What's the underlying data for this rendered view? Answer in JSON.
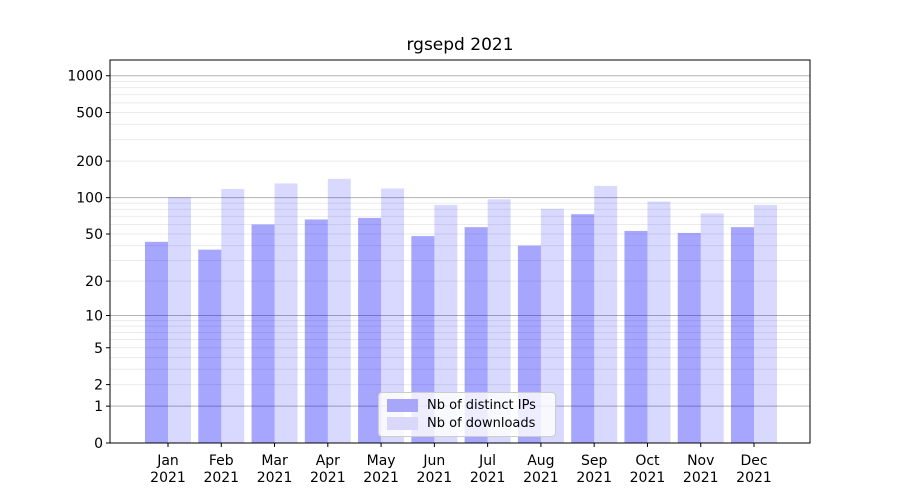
{
  "chart_data": {
    "type": "bar",
    "title": "rgsepd 2021",
    "categories": [
      "Jan",
      "Feb",
      "Mar",
      "Apr",
      "May",
      "Jun",
      "Jul",
      "Aug",
      "Sep",
      "Oct",
      "Nov",
      "Dec"
    ],
    "x_year_label": "2021",
    "series": [
      {
        "name": "Nb of distinct IPs",
        "color": "rgba(0,0,255,0.35)",
        "solid_color": "#a8a6f8",
        "values": [
          43,
          37,
          60,
          66,
          68,
          48,
          57,
          40,
          73,
          53,
          51,
          57
        ]
      },
      {
        "name": "Nb of downloads",
        "color": "rgba(0,0,255,0.15)",
        "solid_color": "#dad8fa",
        "values": [
          101,
          118,
          131,
          143,
          119,
          87,
          97,
          81,
          125,
          93,
          74,
          87
        ]
      }
    ],
    "yticks": [
      0,
      1,
      2,
      5,
      10,
      20,
      50,
      100,
      200,
      500,
      1000
    ],
    "scale": "log1p",
    "ylim": [
      0,
      1360
    ],
    "grid": "on",
    "grid_major": [
      1,
      10,
      100,
      1000
    ],
    "grid_minor": [
      2,
      3,
      4,
      5,
      6,
      7,
      8,
      9,
      20,
      30,
      40,
      50,
      60,
      70,
      80,
      90,
      200,
      300,
      400,
      500,
      600,
      700,
      800,
      900
    ],
    "legend_position": "lower center",
    "colors": {
      "grid_major": "#b2b2b2",
      "grid_minor": "#ebebeb",
      "axis": "#000000",
      "background": "#ffffff"
    }
  }
}
